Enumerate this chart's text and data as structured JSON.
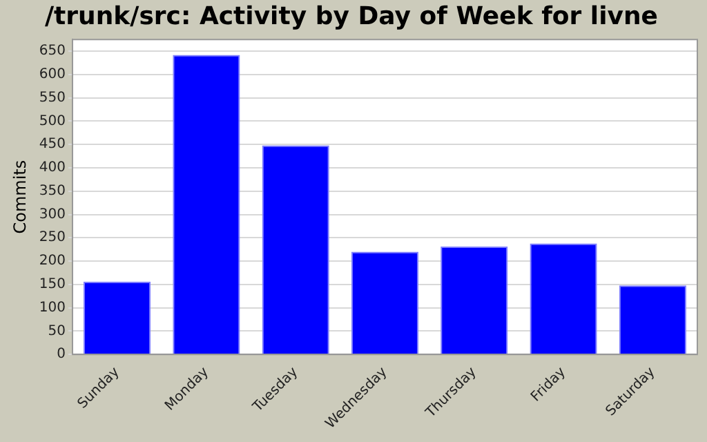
{
  "chart_data": {
    "type": "bar",
    "title": "/trunk/src: Activity by Day of Week for livne",
    "ylabel": "Commits",
    "categories": [
      "Sunday",
      "Monday",
      "Tuesday",
      "Wednesday",
      "Thursday",
      "Friday",
      "Saturday"
    ],
    "values": [
      156,
      642,
      448,
      220,
      231,
      238,
      148
    ],
    "color": "#0000ff",
    "ylim": [
      0,
      675
    ],
    "yticks": [
      0,
      50,
      100,
      150,
      200,
      250,
      300,
      350,
      400,
      450,
      500,
      550,
      600,
      650
    ],
    "grid": "y",
    "legend": false
  }
}
